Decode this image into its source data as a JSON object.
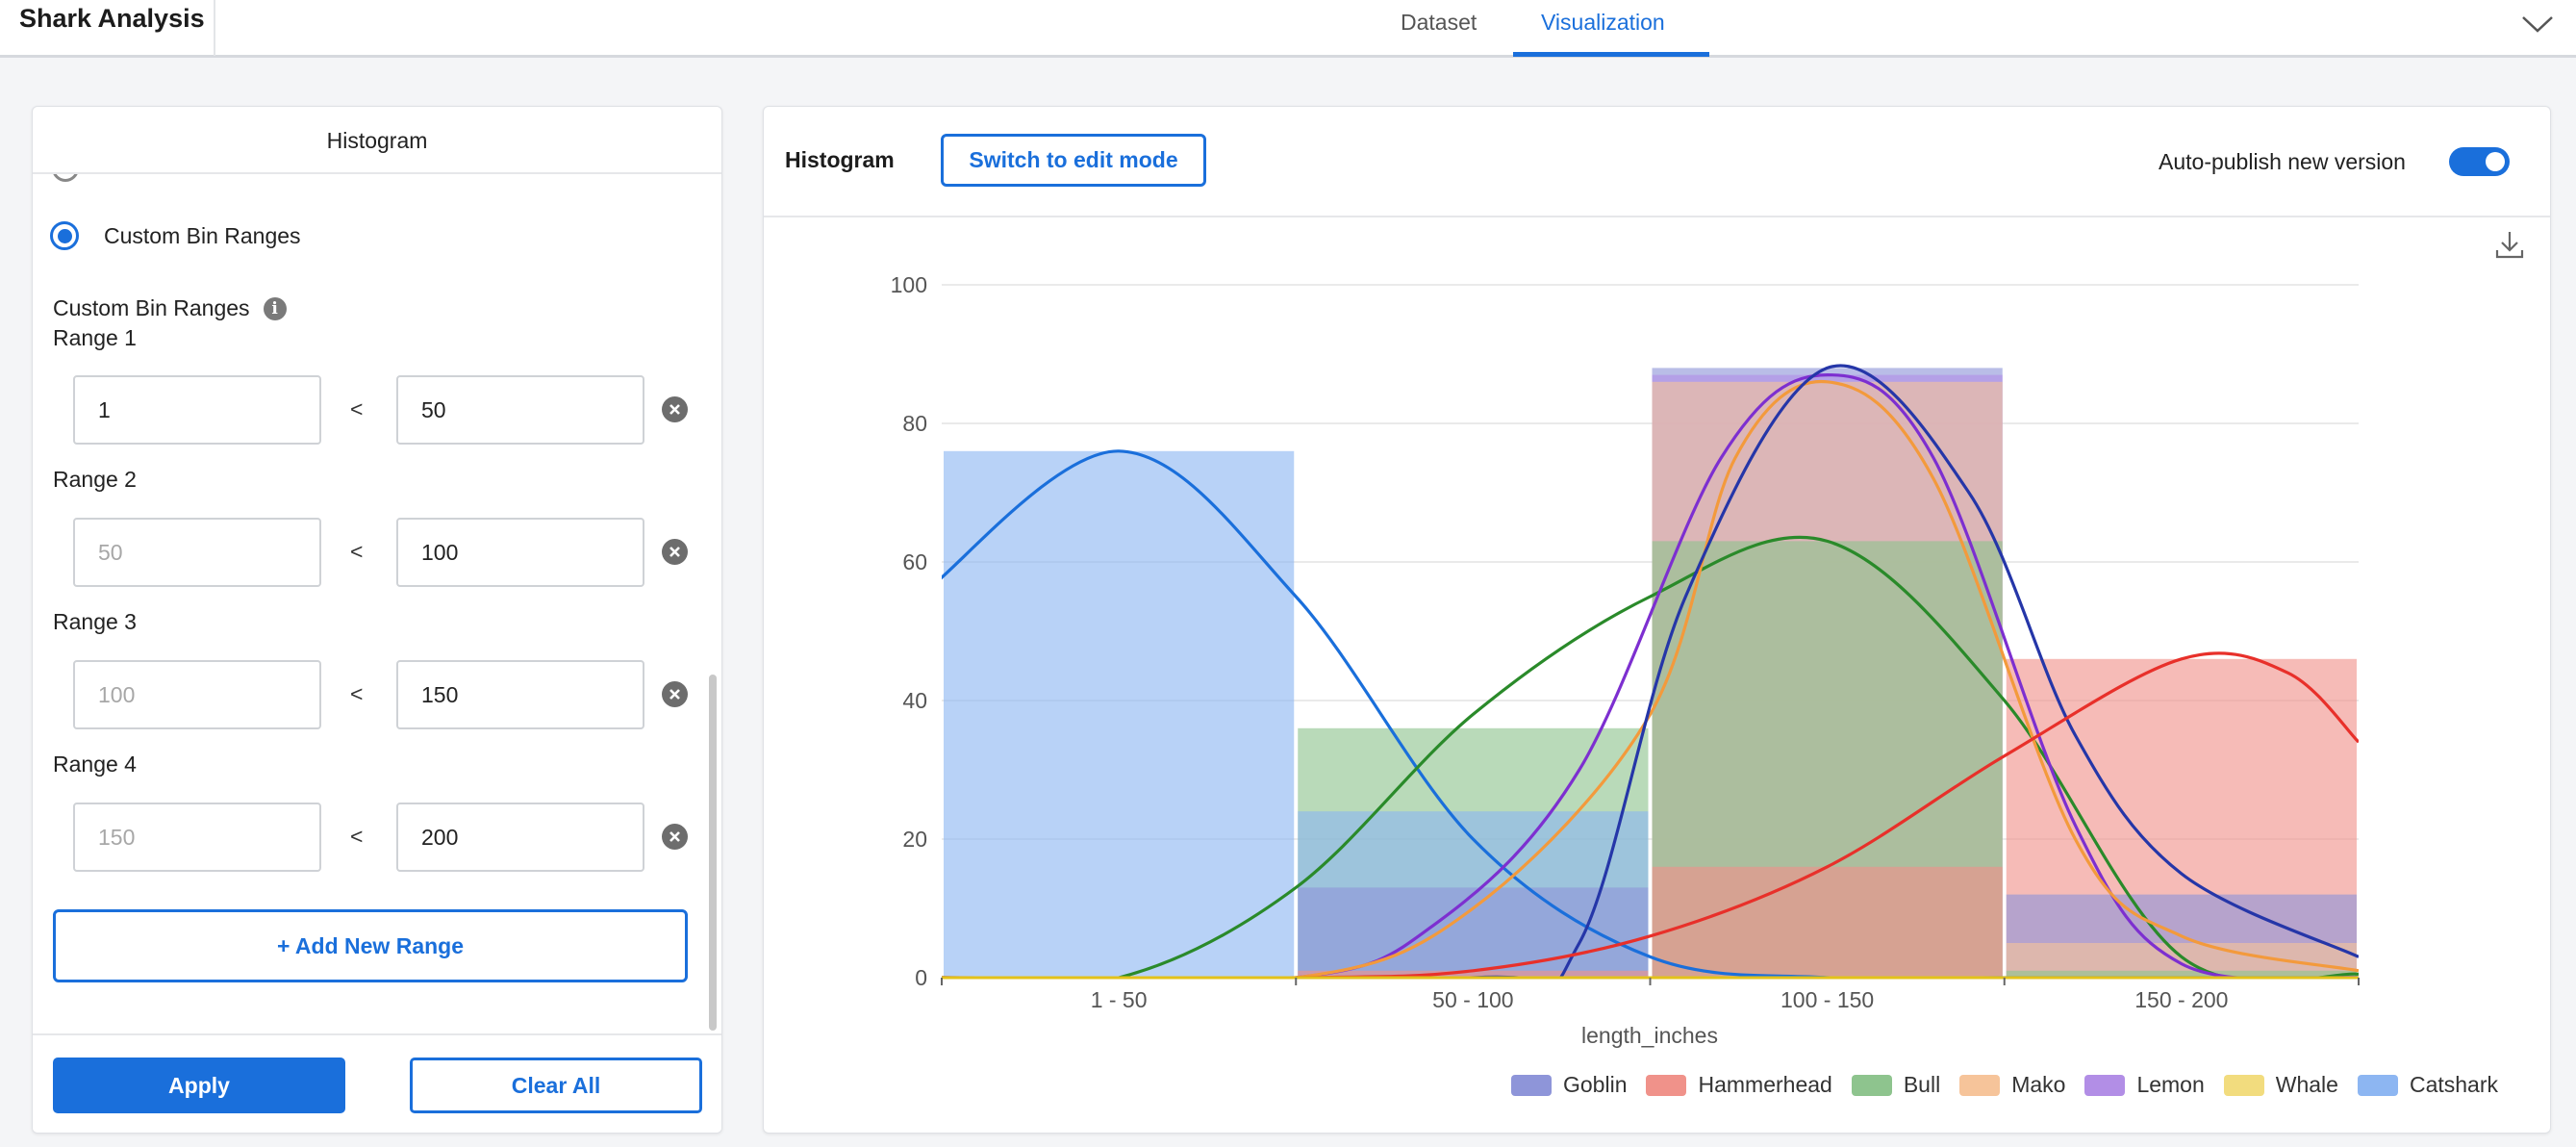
{
  "app": {
    "title": "Shark Analysis"
  },
  "tabs": [
    {
      "label": "Dataset",
      "active": false
    },
    {
      "label": "Visualization",
      "active": true
    }
  ],
  "left_panel": {
    "title": "Histogram",
    "selected_option": "Custom Bin Ranges",
    "section_label": "Custom Bin Ranges",
    "ranges": [
      {
        "title": "Range 1",
        "lower": "1",
        "lower_is_placeholder": false,
        "upper": "50"
      },
      {
        "title": "Range 2",
        "lower": "50",
        "lower_is_placeholder": true,
        "upper": "100"
      },
      {
        "title": "Range 3",
        "lower": "100",
        "lower_is_placeholder": true,
        "upper": "150"
      },
      {
        "title": "Range 4",
        "lower": "150",
        "lower_is_placeholder": true,
        "upper": "200"
      }
    ],
    "less_than": "<",
    "add_range_label": "+ Add New Range",
    "apply_label": "Apply",
    "clear_label": "Clear All"
  },
  "right_panel": {
    "title": "Histogram",
    "edit_button": "Switch to edit mode",
    "autopublish_label": "Auto-publish new version",
    "autopublish_on": true
  },
  "colors": {
    "accent": "#1a6fdb"
  },
  "icons": [
    "chevron-down-icon",
    "info-icon",
    "remove-icon",
    "download-icon"
  ],
  "chart_data": {
    "type": "bar",
    "xlabel": "length_inches",
    "ylabel": "",
    "ylim": [
      0,
      100
    ],
    "yticks": [
      0,
      20,
      40,
      60,
      80,
      100
    ],
    "grid": true,
    "legend_position": "bottom-right",
    "categories": [
      "1 - 50",
      "50 - 100",
      "100 - 150",
      "150 - 200"
    ],
    "series": [
      {
        "name": "Goblin",
        "color": "#8e95d9",
        "line": "#2536a8",
        "values": [
          0,
          13,
          88,
          12
        ]
      },
      {
        "name": "Hammerhead",
        "color": "#f0928a",
        "line": "#e8302a",
        "values": [
          0,
          1,
          16,
          46
        ]
      },
      {
        "name": "Bull",
        "color": "#8ec48e",
        "line": "#2a8a2a",
        "values": [
          0,
          36,
          63,
          1
        ]
      },
      {
        "name": "Mako",
        "color": "#f6c49a",
        "line": "#f39a3c",
        "values": [
          0,
          0,
          86,
          5
        ]
      },
      {
        "name": "Lemon",
        "color": "#b28ee6",
        "line": "#7d2fd0",
        "values": [
          0,
          0,
          87,
          0
        ]
      },
      {
        "name": "Whale",
        "color": "#f2dc7e",
        "line": "#e3c21a",
        "values": [
          0,
          0,
          0,
          0
        ]
      },
      {
        "name": "Catshark",
        "color": "#8db6f2",
        "line": "#1a6fdb",
        "values": [
          76,
          24,
          0,
          0
        ]
      }
    ],
    "curves": [
      {
        "name": "Catshark",
        "points": [
          [
            -2,
            56
          ],
          [
            25,
            76
          ],
          [
            50,
            55
          ],
          [
            75,
            20
          ],
          [
            100,
            3
          ],
          [
            125,
            0
          ],
          [
            150,
            0
          ],
          [
            200,
            0
          ]
        ]
      },
      {
        "name": "Bull",
        "points": [
          [
            0,
            0
          ],
          [
            25,
            0
          ],
          [
            50,
            13
          ],
          [
            75,
            38
          ],
          [
            100,
            55
          ],
          [
            125,
            63
          ],
          [
            150,
            40
          ],
          [
            175,
            3
          ],
          [
            200,
            0.5
          ]
        ]
      },
      {
        "name": "Lemon",
        "points": [
          [
            0,
            0
          ],
          [
            50,
            0
          ],
          [
            70,
            8
          ],
          [
            90,
            30
          ],
          [
            110,
            75
          ],
          [
            125,
            87
          ],
          [
            140,
            75
          ],
          [
            160,
            22
          ],
          [
            175,
            2
          ],
          [
            200,
            0
          ]
        ]
      },
      {
        "name": "Mako",
        "points": [
          [
            0,
            0
          ],
          [
            50,
            0
          ],
          [
            75,
            10
          ],
          [
            100,
            38
          ],
          [
            112,
            75
          ],
          [
            125,
            86
          ],
          [
            140,
            72
          ],
          [
            160,
            20
          ],
          [
            175,
            6
          ],
          [
            200,
            1
          ]
        ]
      },
      {
        "name": "Goblin",
        "points": [
          [
            0,
            0
          ],
          [
            75,
            0
          ],
          [
            90,
            5
          ],
          [
            105,
            55
          ],
          [
            125,
            88
          ],
          [
            145,
            70
          ],
          [
            160,
            35
          ],
          [
            175,
            15
          ],
          [
            200,
            3
          ]
        ]
      },
      {
        "name": "Hammerhead",
        "points": [
          [
            0,
            0
          ],
          [
            50,
            0
          ],
          [
            75,
            1
          ],
          [
            100,
            6
          ],
          [
            125,
            16
          ],
          [
            150,
            32
          ],
          [
            175,
            46
          ],
          [
            190,
            44
          ],
          [
            200,
            34
          ]
        ]
      }
    ]
  }
}
